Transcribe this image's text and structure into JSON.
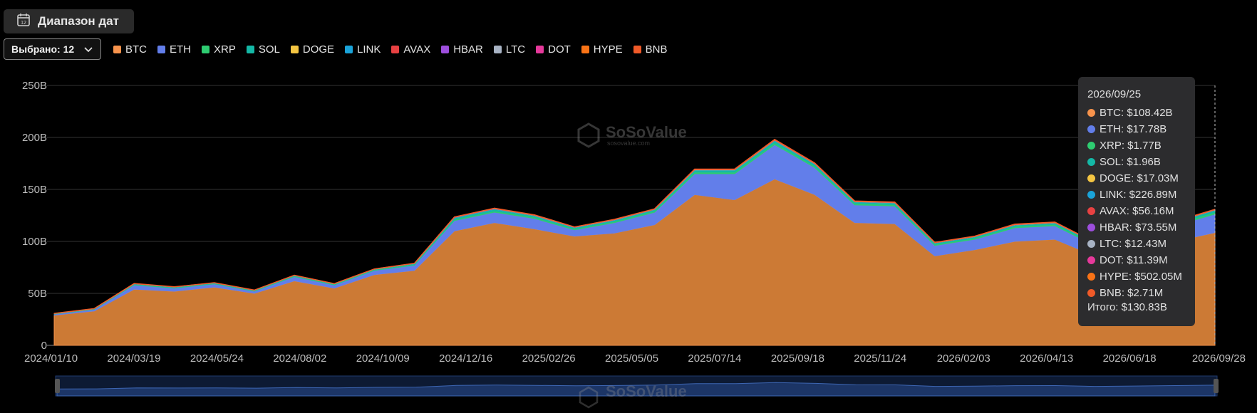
{
  "toolbar": {
    "date_range_label": "Диапазон дат",
    "selected_label": "Выбрано: 12"
  },
  "legend": [
    {
      "name": "BTC",
      "color": "#f7934c"
    },
    {
      "name": "ETH",
      "color": "#627eea"
    },
    {
      "name": "XRP",
      "color": "#2ecc71"
    },
    {
      "name": "SOL",
      "color": "#14b8a6"
    },
    {
      "name": "DOGE",
      "color": "#f4c542"
    },
    {
      "name": "LINK",
      "color": "#1aa3d9"
    },
    {
      "name": "AVAX",
      "color": "#e84142"
    },
    {
      "name": "HBAR",
      "color": "#9d4edd"
    },
    {
      "name": "LTC",
      "color": "#a8b3c4"
    },
    {
      "name": "DOT",
      "color": "#e6399b"
    },
    {
      "name": "HYPE",
      "color": "#f97316"
    },
    {
      "name": "BNB",
      "color": "#f05a28"
    }
  ],
  "watermark": {
    "brand": "SoSoValue",
    "site": "sosovalue.com"
  },
  "tooltip": {
    "date": "2026/09/25",
    "rows": [
      {
        "label": "BTC: $108.42B",
        "color": "#f7934c"
      },
      {
        "label": "ETH: $17.78B",
        "color": "#627eea"
      },
      {
        "label": "XRP: $1.77B",
        "color": "#2ecc71"
      },
      {
        "label": "SOL: $1.96B",
        "color": "#14b8a6"
      },
      {
        "label": "DOGE: $17.03M",
        "color": "#f4c542"
      },
      {
        "label": "LINK: $226.89M",
        "color": "#1aa3d9"
      },
      {
        "label": "AVAX: $56.16M",
        "color": "#e84142"
      },
      {
        "label": "HBAR: $73.55M",
        "color": "#9d4edd"
      },
      {
        "label": "LTC: $12.43M",
        "color": "#a8b3c4"
      },
      {
        "label": "DOT: $11.39M",
        "color": "#e6399b"
      },
      {
        "label": "HYPE: $502.05M",
        "color": "#f97316"
      },
      {
        "label": "BNB: $2.71M",
        "color": "#f05a28"
      }
    ],
    "total": "Итого: $130.83B"
  },
  "chart_data": {
    "type": "area",
    "stacked": true,
    "x": [
      "2024/01/10",
      "2024/02/15",
      "2024/03/19",
      "2024/04/20",
      "2024/05/24",
      "2024/06/28",
      "2024/08/02",
      "2024/09/05",
      "2024/10/09",
      "2024/11/12",
      "2024/12/16",
      "2025/01/20",
      "2025/02/26",
      "2025/04/01",
      "2025/05/05",
      "2025/06/09",
      "2025/07/14",
      "2025/08/15",
      "2025/09/18",
      "2025/10/21",
      "2025/11/24",
      "2025/12/29",
      "2026/02/03",
      "2026/03/10",
      "2026/04/13",
      "2026/05/15",
      "2026/06/18",
      "2026/07/24",
      "2026/08/26",
      "2026/09/25"
    ],
    "series": [
      {
        "name": "BTC",
        "color": "#f7934c",
        "values": [
          29,
          33,
          54,
          52,
          56,
          50,
          62,
          55,
          68,
          72,
          110,
          118,
          112,
          105,
          108,
          116,
          145,
          140,
          160,
          145,
          118,
          117,
          86,
          92,
          100,
          102,
          86,
          92,
          100,
          108.42
        ]
      },
      {
        "name": "ETH",
        "color": "#627eea",
        "values": [
          1,
          1.5,
          4,
          3,
          3,
          2,
          4,
          3,
          4,
          5,
          10,
          10,
          10,
          6,
          10,
          12,
          20,
          25,
          33,
          26,
          17,
          17,
          10,
          10,
          13,
          13,
          10,
          12,
          15,
          17.78
        ]
      },
      {
        "name": "XRP",
        "color": "#2ecc71",
        "values": [
          0.3,
          0.3,
          0.4,
          0.4,
          0.4,
          0.4,
          0.5,
          0.5,
          0.5,
          0.6,
          1,
          1.2,
          1.2,
          1,
          1.1,
          1.2,
          1.6,
          1.5,
          1.6,
          1.5,
          1.3,
          1.3,
          1.1,
          1.1,
          1.3,
          1.3,
          1.1,
          1.4,
          1.6,
          1.77
        ]
      },
      {
        "name": "SOL",
        "color": "#14b8a6",
        "values": [
          0.2,
          0.3,
          0.6,
          0.5,
          0.5,
          0.4,
          0.6,
          0.5,
          0.6,
          0.8,
          1.5,
          1.6,
          1.4,
          1.1,
          1.2,
          1.2,
          1.7,
          1.8,
          2.1,
          1.8,
          1.5,
          1.5,
          1.2,
          1.2,
          1.4,
          1.4,
          1.3,
          1.5,
          1.7,
          1.96
        ]
      },
      {
        "name": "DOGE",
        "color": "#f4c542",
        "values": [
          0.02,
          0.02,
          0.03,
          0.02,
          0.02,
          0.02,
          0.02,
          0.02,
          0.02,
          0.03,
          0.05,
          0.04,
          0.03,
          0.03,
          0.03,
          0.03,
          0.04,
          0.04,
          0.04,
          0.03,
          0.03,
          0.03,
          0.02,
          0.02,
          0.02,
          0.02,
          0.02,
          0.02,
          0.02,
          0.017
        ]
      },
      {
        "name": "LINK",
        "color": "#1aa3d9",
        "values": [
          0.1,
          0.1,
          0.2,
          0.2,
          0.2,
          0.2,
          0.2,
          0.2,
          0.2,
          0.3,
          0.4,
          0.4,
          0.3,
          0.3,
          0.3,
          0.3,
          0.4,
          0.4,
          0.4,
          0.3,
          0.3,
          0.3,
          0.2,
          0.2,
          0.2,
          0.2,
          0.2,
          0.2,
          0.2,
          0.227
        ]
      },
      {
        "name": "AVAX",
        "color": "#e84142",
        "values": [
          0.05,
          0.05,
          0.08,
          0.07,
          0.07,
          0.06,
          0.07,
          0.06,
          0.07,
          0.08,
          0.1,
          0.1,
          0.08,
          0.07,
          0.07,
          0.07,
          0.08,
          0.08,
          0.09,
          0.08,
          0.07,
          0.07,
          0.06,
          0.06,
          0.06,
          0.06,
          0.05,
          0.05,
          0.06,
          0.056
        ]
      },
      {
        "name": "HBAR",
        "color": "#9d4edd",
        "values": [
          0.03,
          0.03,
          0.05,
          0.04,
          0.04,
          0.04,
          0.05,
          0.05,
          0.05,
          0.06,
          0.1,
          0.1,
          0.09,
          0.08,
          0.08,
          0.08,
          0.09,
          0.09,
          0.1,
          0.09,
          0.08,
          0.08,
          0.07,
          0.07,
          0.07,
          0.07,
          0.07,
          0.07,
          0.07,
          0.074
        ]
      },
      {
        "name": "LTC",
        "color": "#a8b3c4",
        "values": [
          0.02,
          0.02,
          0.03,
          0.02,
          0.02,
          0.02,
          0.02,
          0.02,
          0.02,
          0.02,
          0.03,
          0.03,
          0.02,
          0.02,
          0.02,
          0.02,
          0.02,
          0.02,
          0.02,
          0.02,
          0.02,
          0.02,
          0.01,
          0.01,
          0.01,
          0.01,
          0.01,
          0.01,
          0.01,
          0.012
        ]
      },
      {
        "name": "DOT",
        "color": "#e6399b",
        "values": [
          0.02,
          0.02,
          0.03,
          0.02,
          0.02,
          0.02,
          0.02,
          0.02,
          0.02,
          0.02,
          0.03,
          0.03,
          0.02,
          0.02,
          0.02,
          0.02,
          0.02,
          0.02,
          0.02,
          0.02,
          0.02,
          0.02,
          0.01,
          0.01,
          0.01,
          0.01,
          0.01,
          0.01,
          0.01,
          0.011
        ]
      },
      {
        "name": "HYPE",
        "color": "#f97316",
        "values": [
          0,
          0,
          0,
          0,
          0,
          0,
          0,
          0,
          0,
          0,
          0.3,
          0.4,
          0.4,
          0.3,
          0.4,
          0.4,
          0.6,
          0.6,
          0.7,
          0.6,
          0.5,
          0.5,
          0.4,
          0.4,
          0.5,
          0.5,
          0.4,
          0.4,
          0.5,
          0.502
        ]
      },
      {
        "name": "BNB",
        "color": "#f05a28",
        "values": [
          0.002,
          0.002,
          0.003,
          0.003,
          0.003,
          0.003,
          0.003,
          0.003,
          0.003,
          0.003,
          0.004,
          0.004,
          0.004,
          0.003,
          0.003,
          0.003,
          0.003,
          0.003,
          0.003,
          0.003,
          0.003,
          0.003,
          0.003,
          0.003,
          0.003,
          0.003,
          0.003,
          0.003,
          0.003,
          0.0027
        ]
      }
    ],
    "xticks": [
      "2024/01/10",
      "2024/03/19",
      "2024/05/24",
      "2024/08/02",
      "2024/10/09",
      "2024/12/16",
      "2025/02/26",
      "2025/05/05",
      "2025/07/14",
      "2025/09/18",
      "2025/11/24",
      "2026/02/03",
      "2026/04/13",
      "2026/06/18",
      "2026/09/28"
    ],
    "yticks": [
      "0",
      "50B",
      "100B",
      "150B",
      "200B",
      "250B"
    ],
    "ylim": [
      0,
      250
    ],
    "grid": true,
    "legend_position": "top-left"
  }
}
